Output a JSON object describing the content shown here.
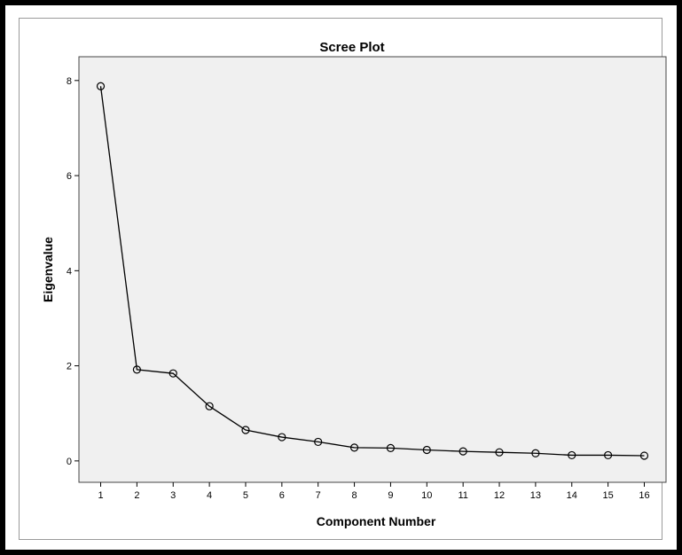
{
  "chart_data": {
    "type": "line",
    "title": "Scree Plot",
    "xlabel": "Component Number",
    "ylabel": "Eigenvalue",
    "x": [
      1,
      2,
      3,
      4,
      5,
      6,
      7,
      8,
      9,
      10,
      11,
      12,
      13,
      14,
      15,
      16
    ],
    "series": [
      {
        "values": [
          7.88,
          1.92,
          1.84,
          1.15,
          0.65,
          0.5,
          0.4,
          0.28,
          0.27,
          0.23,
          0.2,
          0.18,
          0.16,
          0.12,
          0.12,
          0.11
        ]
      }
    ],
    "xticks": [
      "1",
      "2",
      "3",
      "4",
      "5",
      "6",
      "7",
      "8",
      "9",
      "10",
      "11",
      "12",
      "13",
      "14",
      "15",
      "16"
    ],
    "yticks": [
      "0",
      "2",
      "4",
      "6",
      "8"
    ],
    "ylim": [
      -0.45,
      8.5
    ],
    "xlim": [
      0.4,
      16.6
    ],
    "grid": false,
    "legend": "none",
    "colors": {
      "plot_background": "#f0f0f0",
      "line": "#000000",
      "marker": "#000000"
    },
    "markers": "open-circle"
  }
}
